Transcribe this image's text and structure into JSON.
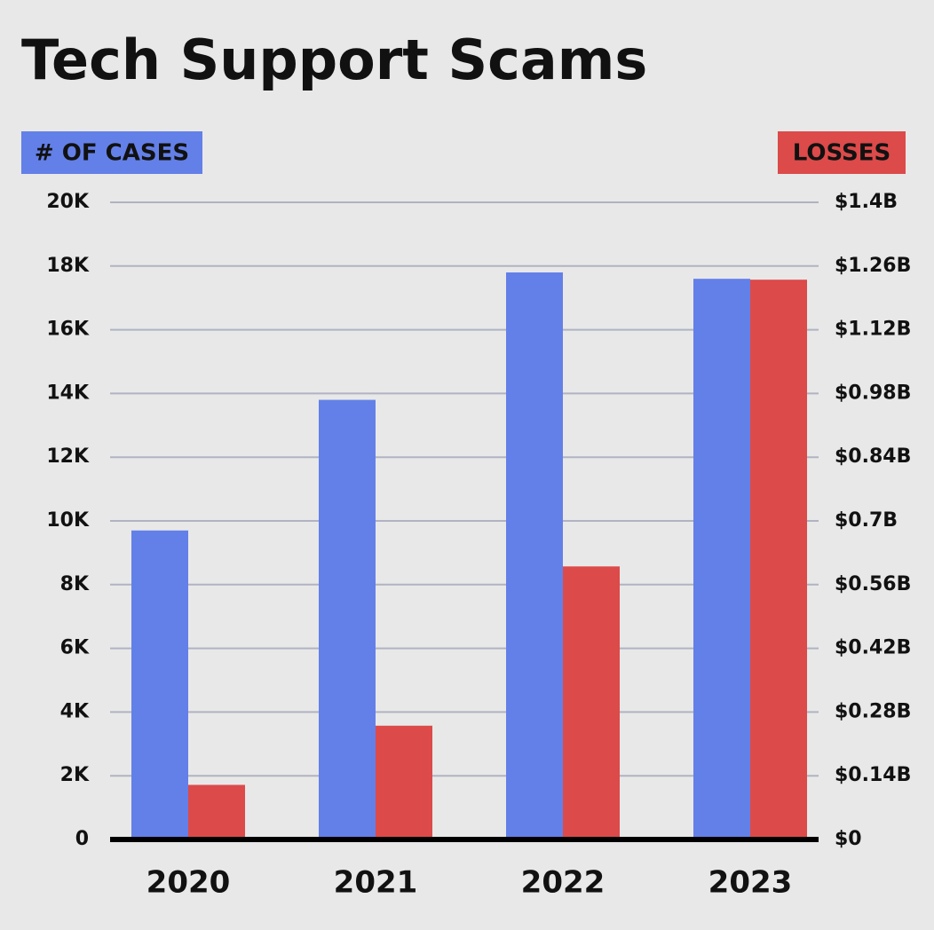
{
  "chart_data": {
    "type": "bar",
    "title": "Tech Support Scams",
    "y_label": "# OF CASES",
    "y2_label": "LOSSES",
    "categories": [
      "2020",
      "2021",
      "2022",
      "2023"
    ],
    "series": [
      {
        "color": "#6380e8",
        "values": [
          9700,
          13800,
          17800,
          17600
        ]
      },
      {
        "color": "#dc4a4a",
        "axis": "y2",
        "values": [
          120000000,
          250000000,
          600000000,
          1230000000
        ]
      }
    ],
    "ylim": [
      0,
      20000
    ],
    "yticks": [
      0,
      {
        "value": 2000,
        "label": "2K"
      },
      {
        "value": 4000,
        "label": "4K"
      },
      {
        "value": 6000,
        "label": "6K"
      },
      {
        "value": 8000,
        "label": "8K"
      },
      {
        "value": 10000,
        "label": "10K"
      },
      {
        "value": 12000,
        "label": "12K"
      },
      {
        "value": 14000,
        "label": "14K"
      },
      {
        "value": 16000,
        "label": "16K"
      },
      {
        "value": 18000,
        "label": "18K"
      },
      {
        "value": 20000,
        "label": "20K"
      }
    ],
    "y2lim": [
      0,
      1400000000
    ],
    "y2ticks": [
      {
        "value": 0,
        "label": "$0"
      },
      {
        "value": 140000000,
        "label": "$0.14B"
      },
      {
        "value": 280000000,
        "label": "$0.28B"
      },
      {
        "value": 420000000,
        "label": "$0.42B"
      },
      {
        "value": 560000000,
        "label": "$0.56B"
      },
      {
        "value": 700000000,
        "label": "$0.7B"
      },
      {
        "value": 840000000,
        "label": "$0.84B"
      },
      {
        "value": 980000000,
        "label": "$0.98B"
      },
      {
        "value": 1120000000,
        "label": "$1.12B"
      },
      {
        "value": 1260000000,
        "label": "$1.26B"
      },
      {
        "value": 1400000000,
        "label": "$1.4B"
      }
    ],
    "grid": true
  }
}
